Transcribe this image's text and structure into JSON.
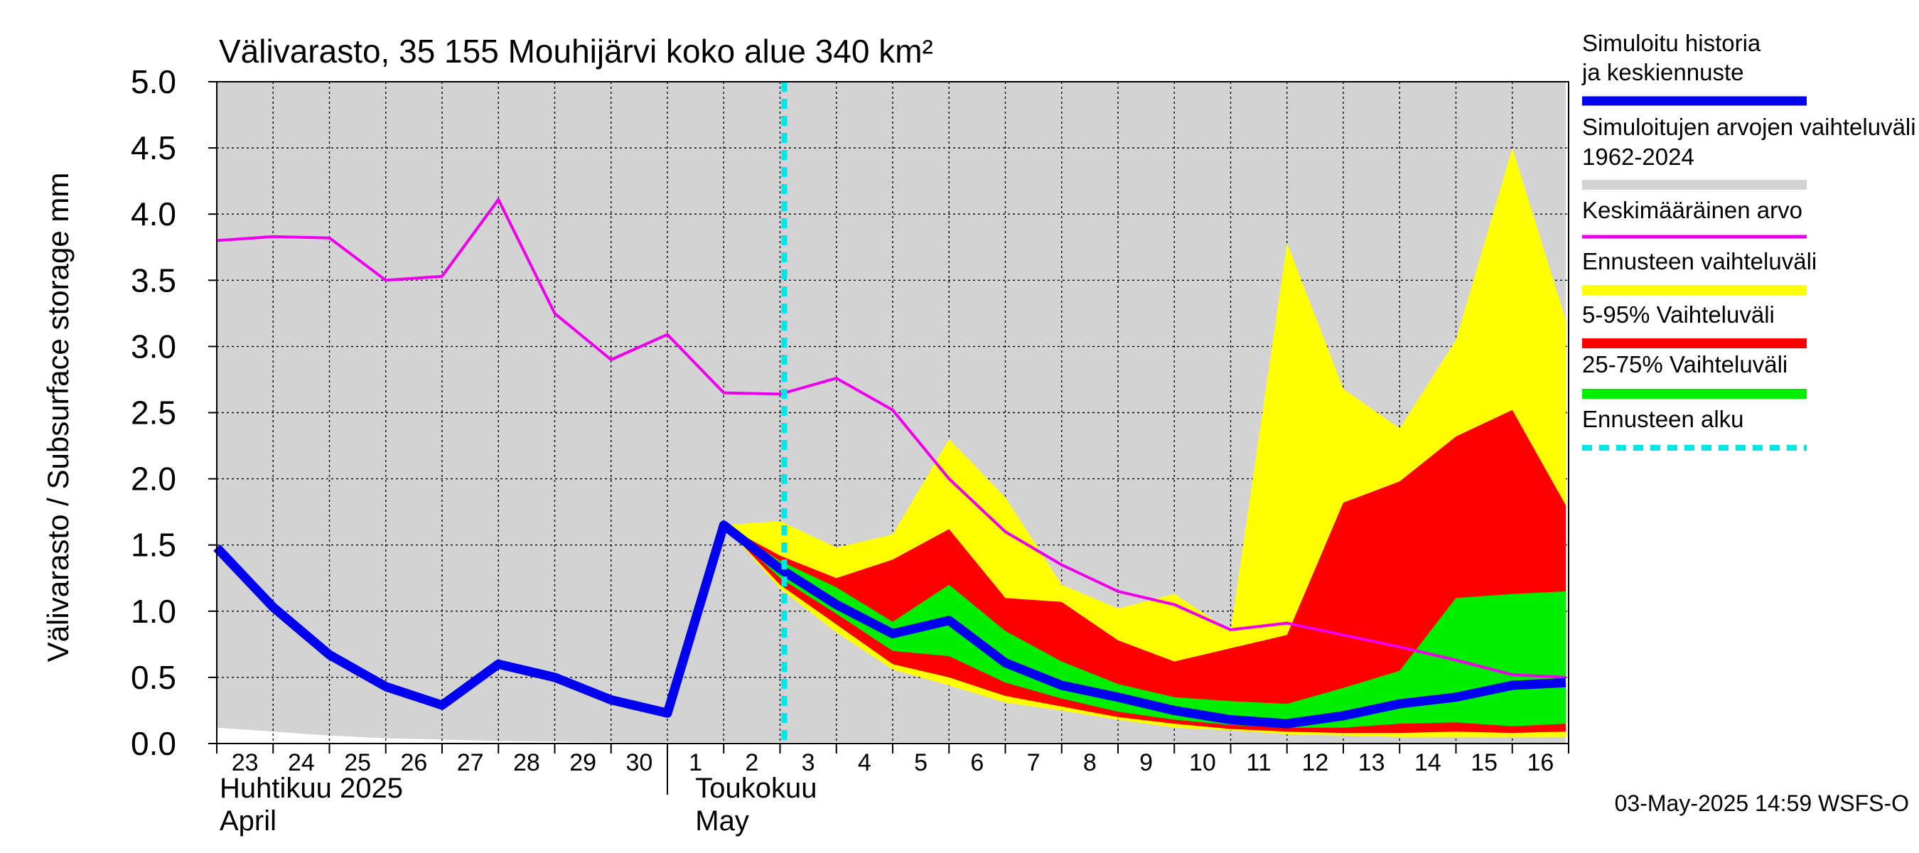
{
  "chart_data": {
    "type": "area",
    "title": "Välivarasto, 35 155 Mouhijärvi koko alue 340 km²",
    "ylabel": "Välivarasto / Subsurface storage  mm",
    "ylim": [
      0,
      5
    ],
    "yticks": [
      "0.0",
      "0.5",
      "1.0",
      "1.5",
      "2.0",
      "2.5",
      "3.0",
      "3.5",
      "4.0",
      "4.5",
      "5.0"
    ],
    "x_days": [
      "2025-04-23",
      "2025-04-24",
      "2025-04-25",
      "2025-04-26",
      "2025-04-27",
      "2025-04-28",
      "2025-04-29",
      "2025-04-30",
      "2025-05-01",
      "2025-05-02",
      "2025-05-03",
      "2025-05-04",
      "2025-05-05",
      "2025-05-06",
      "2025-05-07",
      "2025-05-08",
      "2025-05-09",
      "2025-05-10",
      "2025-05-11",
      "2025-05-12",
      "2025-05-13",
      "2025-05-14",
      "2025-05-15",
      "2025-05-16"
    ],
    "x_tick_labels": [
      "23",
      "24",
      "25",
      "26",
      "27",
      "28",
      "29",
      "30",
      "1",
      "2",
      "3",
      "4",
      "5",
      "6",
      "7",
      "8",
      "9",
      "10",
      "11",
      "12",
      "13",
      "14",
      "15",
      "16"
    ],
    "month_labels": [
      {
        "fi": "Huhtikuu  2025",
        "en": "April"
      },
      {
        "fi": "Toukokuu",
        "en": "May"
      }
    ],
    "forecast_start": "2025-05-03",
    "grid": true,
    "legend_position": "right",
    "legend": [
      {
        "label": "Simuloitu historia ja keskiennuste",
        "color": "#0000ee"
      },
      {
        "label": "Simuloitujen arvojen vaihteluväli 1962-2024",
        "color": "#d3d3d3"
      },
      {
        "label": "Keskimääräinen arvo",
        "color": "#ee00ee"
      },
      {
        "label": "Ennusteen vaihteluväli",
        "color": "#ffff00"
      },
      {
        "label": "5-95% Vaihteluväli",
        "color": "#ff0000"
      },
      {
        "label": "25-75% Vaihteluväli",
        "color": "#00ee00"
      },
      {
        "label": "Ennusteen alku",
        "color": "#00e5e5"
      }
    ],
    "series": {
      "historical_range": {
        "upper": [
          [
            0,
            5
          ],
          [
            23.95,
            5
          ]
        ],
        "lower": [
          [
            0,
            0.12
          ],
          [
            1,
            0.09
          ],
          [
            2,
            0.06
          ],
          [
            3,
            0.04
          ],
          [
            4,
            0.03
          ],
          [
            5,
            0.02
          ],
          [
            6,
            0.015
          ],
          [
            7,
            0.01
          ],
          [
            8,
            0.01
          ],
          [
            9,
            0.01
          ],
          [
            14.9,
            0.01
          ],
          [
            15,
            0
          ],
          [
            23.95,
            0
          ]
        ]
      },
      "mean": [
        [
          0,
          3.8
        ],
        [
          1,
          3.83
        ],
        [
          2,
          3.82
        ],
        [
          3,
          3.5
        ],
        [
          4,
          3.53
        ],
        [
          5,
          4.11
        ],
        [
          6,
          3.25
        ],
        [
          7,
          2.9
        ],
        [
          8,
          3.09
        ],
        [
          9,
          2.65
        ],
        [
          10,
          2.64
        ],
        [
          11,
          2.76
        ],
        [
          12,
          2.52
        ],
        [
          13,
          2.0
        ],
        [
          14,
          1.6
        ],
        [
          15,
          1.35
        ],
        [
          16,
          1.15
        ],
        [
          17,
          1.05
        ],
        [
          18,
          0.86
        ],
        [
          19,
          0.91
        ],
        [
          20,
          0.82
        ],
        [
          21,
          0.73
        ],
        [
          22,
          0.63
        ],
        [
          23,
          0.52
        ],
        [
          23.95,
          0.5
        ]
      ],
      "forecast_range": {
        "upper": [
          [
            9,
            1.65
          ],
          [
            10,
            1.68
          ],
          [
            11,
            1.48
          ],
          [
            12,
            1.58
          ],
          [
            13,
            2.3
          ],
          [
            14,
            1.86
          ],
          [
            15,
            1.2
          ],
          [
            16,
            1.02
          ],
          [
            17,
            1.13
          ],
          [
            18,
            0.85
          ],
          [
            19,
            3.78
          ],
          [
            20,
            2.68
          ],
          [
            21,
            2.38
          ],
          [
            22,
            3.05
          ],
          [
            23,
            4.5
          ],
          [
            23.95,
            3.2
          ]
        ],
        "lower": [
          [
            9,
            1.65
          ],
          [
            10,
            1.17
          ],
          [
            11,
            0.84
          ],
          [
            12,
            0.56
          ],
          [
            13,
            0.44
          ],
          [
            14,
            0.31
          ],
          [
            15,
            0.25
          ],
          [
            16,
            0.18
          ],
          [
            17,
            0.12
          ],
          [
            18,
            0.1
          ],
          [
            19,
            0.07
          ],
          [
            20,
            0.06
          ],
          [
            21,
            0.05
          ],
          [
            22,
            0.05
          ],
          [
            23,
            0.05
          ],
          [
            23.95,
            0.05
          ]
        ]
      },
      "p5_95": {
        "upper": [
          [
            9,
            1.65
          ],
          [
            10,
            1.42
          ],
          [
            11,
            1.25
          ],
          [
            12,
            1.39
          ],
          [
            13,
            1.62
          ],
          [
            14,
            1.1
          ],
          [
            15,
            1.07
          ],
          [
            16,
            0.78
          ],
          [
            17,
            0.62
          ],
          [
            18,
            0.72
          ],
          [
            19,
            0.82
          ],
          [
            20,
            1.82
          ],
          [
            21,
            1.98
          ],
          [
            22,
            2.32
          ],
          [
            23,
            2.52
          ],
          [
            23.95,
            1.8
          ]
        ],
        "lower": [
          [
            9,
            1.65
          ],
          [
            10,
            1.2
          ],
          [
            11,
            0.9
          ],
          [
            12,
            0.6
          ],
          [
            13,
            0.5
          ],
          [
            14,
            0.36
          ],
          [
            15,
            0.28
          ],
          [
            16,
            0.2
          ],
          [
            17,
            0.15
          ],
          [
            18,
            0.11
          ],
          [
            19,
            0.09
          ],
          [
            20,
            0.08
          ],
          [
            21,
            0.08
          ],
          [
            22,
            0.09
          ],
          [
            23,
            0.08
          ],
          [
            23.95,
            0.09
          ]
        ]
      },
      "p25_75": {
        "upper": [
          [
            9,
            1.65
          ],
          [
            10,
            1.38
          ],
          [
            11,
            1.18
          ],
          [
            12,
            0.92
          ],
          [
            13,
            1.2
          ],
          [
            14,
            0.85
          ],
          [
            15,
            0.62
          ],
          [
            16,
            0.45
          ],
          [
            17,
            0.35
          ],
          [
            18,
            0.32
          ],
          [
            19,
            0.3
          ],
          [
            20,
            0.42
          ],
          [
            21,
            0.55
          ],
          [
            22,
            1.1
          ],
          [
            23,
            1.13
          ],
          [
            23.95,
            1.15
          ]
        ],
        "lower": [
          [
            9,
            1.65
          ],
          [
            10,
            1.25
          ],
          [
            11,
            0.98
          ],
          [
            12,
            0.7
          ],
          [
            13,
            0.66
          ],
          [
            14,
            0.46
          ],
          [
            15,
            0.34
          ],
          [
            16,
            0.24
          ],
          [
            17,
            0.18
          ],
          [
            18,
            0.14
          ],
          [
            19,
            0.12
          ],
          [
            20,
            0.12
          ],
          [
            21,
            0.15
          ],
          [
            22,
            0.16
          ],
          [
            23,
            0.13
          ],
          [
            23.95,
            0.15
          ]
        ]
      },
      "simulated": [
        [
          0,
          1.48
        ],
        [
          1,
          1.03
        ],
        [
          2,
          0.67
        ],
        [
          3,
          0.43
        ],
        [
          4,
          0.29
        ],
        [
          5,
          0.6
        ],
        [
          6,
          0.5
        ],
        [
          7,
          0.33
        ],
        [
          8,
          0.23
        ],
        [
          9,
          1.65
        ],
        [
          10,
          1.32
        ],
        [
          11,
          1.05
        ],
        [
          12,
          0.83
        ],
        [
          13,
          0.93
        ],
        [
          14,
          0.61
        ],
        [
          15,
          0.44
        ],
        [
          16,
          0.35
        ],
        [
          17,
          0.25
        ],
        [
          18,
          0.18
        ],
        [
          19,
          0.15
        ],
        [
          20,
          0.21
        ],
        [
          21,
          0.3
        ],
        [
          22,
          0.35
        ],
        [
          23,
          0.44
        ],
        [
          23.95,
          0.46
        ]
      ]
    }
  },
  "footer_timestamp": "03-May-2025 14:59 WSFS-O"
}
